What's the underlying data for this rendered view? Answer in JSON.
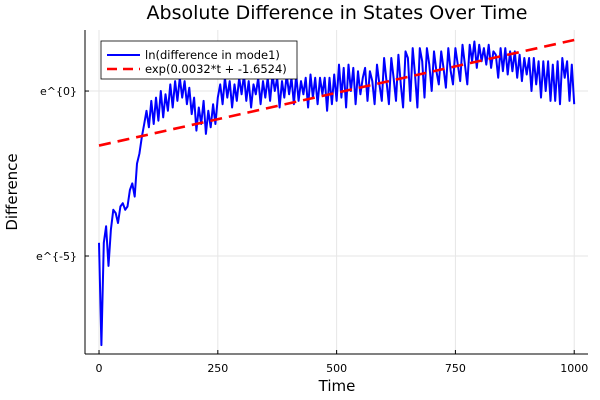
{
  "chart_data": {
    "type": "line",
    "title": "Absolute Difference in States Over Time",
    "xlabel": "Time",
    "ylabel": "Difference",
    "xlim": [
      -29.5,
      1029
    ],
    "ylim_ln": [
      -7.97,
      1.85
    ],
    "y_scale": "log (natural)",
    "grid": true,
    "legend_position": "top-left",
    "x_ticks": [
      0,
      250,
      500,
      750,
      1000
    ],
    "x_tick_labels": [
      "0",
      "250",
      "500",
      "750",
      "1000"
    ],
    "y_ticks_ln": [
      0,
      -5
    ],
    "y_tick_labels": [
      "e^{0}",
      "e^{-5}"
    ],
    "series": [
      {
        "name": "ln(difference in mode1)",
        "color": "#0000ff",
        "style": "solid",
        "x_start": 0,
        "x_step": 5,
        "values_ln": [
          -4.6,
          -7.7,
          -4.6,
          -4.1,
          -5.3,
          -4.2,
          -3.6,
          -3.7,
          -4.0,
          -3.5,
          -3.4,
          -3.6,
          -3.5,
          -3.0,
          -2.8,
          -3.2,
          -2.2,
          -1.9,
          -1.4,
          -1.0,
          -0.6,
          -1.1,
          -0.3,
          -1.0,
          -0.2,
          -0.9,
          0.0,
          -0.8,
          -0.1,
          -0.6,
          0.2,
          -0.5,
          0.3,
          -0.3,
          0.4,
          -0.2,
          0.3,
          -0.4,
          0.1,
          -0.7,
          -0.2,
          -1.2,
          -0.5,
          -1.0,
          -0.3,
          -1.3,
          -0.6,
          -1.1,
          -0.4,
          -1.0,
          -0.2,
          0.2,
          -0.4,
          0.4,
          -0.2,
          0.3,
          -0.5,
          0.2,
          -0.3,
          0.4,
          -0.1,
          0.5,
          -0.3,
          0.3,
          -0.5,
          0.2,
          -0.1,
          0.4,
          -0.4,
          0.3,
          -0.2,
          0.4,
          -0.3,
          0.5,
          0.0,
          0.4,
          -0.5,
          0.3,
          -0.2,
          0.5,
          -0.1,
          0.4,
          -0.4,
          0.5,
          -0.3,
          0.3,
          -0.1,
          0.4,
          -0.5,
          0.5,
          -0.2,
          0.4,
          -0.4,
          0.4,
          -0.1,
          0.4,
          -0.6,
          0.4,
          -0.4,
          0.5,
          -0.3,
          0.8,
          -0.2,
          0.7,
          -0.5,
          0.8,
          0.0,
          0.7,
          -0.4,
          0.6,
          -0.1,
          0.4,
          0.7,
          -0.3,
          0.6,
          0.3,
          -0.4,
          0.8,
          0.2,
          -0.3,
          1.0,
          0.3,
          -0.4,
          1.0,
          0.4,
          -0.3,
          1.1,
          0.2,
          -0.5,
          1.2,
          1.0,
          -0.3,
          1.3,
          0.5,
          -0.5,
          1.3,
          0.9,
          -0.2,
          1.3,
          0.8,
          0.0,
          1.2,
          0.6,
          0.2,
          1.2,
          0.7,
          0.1,
          1.3,
          0.6,
          0.2,
          1.3,
          0.8,
          0.3,
          1.4,
          0.8,
          0.2,
          1.4,
          0.9,
          1.5,
          0.7,
          1.4,
          0.9,
          1.3,
          0.8,
          1.4,
          0.7,
          1.2,
          1.1,
          0.4,
          1.3,
          0.6,
          1.3,
          0.5,
          1.2,
          0.6,
          1.2,
          0.4,
          1.1,
          0.3,
          1.0,
          0.5,
          1.0,
          0.0,
          1.0,
          0.2,
          0.9,
          -0.2,
          0.9,
          0.0,
          0.9,
          -0.3,
          0.8,
          -0.3,
          0.9,
          -0.4,
          1.0,
          0.4,
          0.9,
          -0.3,
          0.8,
          -0.4
        ]
      },
      {
        "name": "exp(0.0032*t + -1.6524)",
        "color": "#ff0000",
        "style": "dashed",
        "slope": 0.0032,
        "intercept": -1.6524,
        "x_range": [
          0,
          1000
        ]
      }
    ]
  }
}
